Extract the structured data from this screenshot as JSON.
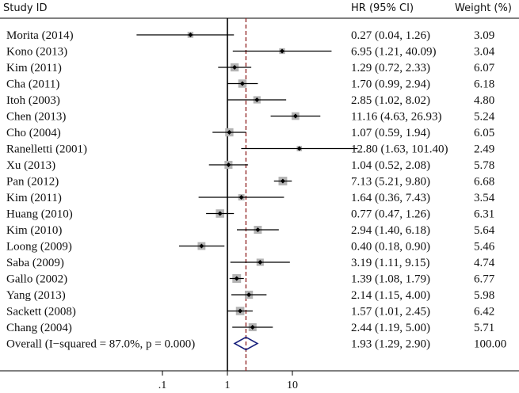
{
  "chart_data": {
    "type": "forest",
    "headers": {
      "study": "Study ID",
      "effect": "HR (95% CI)",
      "weight": "Weight (%)"
    },
    "x_scale": "log",
    "xlim": [
      0.01,
      1000
    ],
    "x_ticks": [
      {
        "value": 0.1,
        "label": ".1"
      },
      {
        "value": 1,
        "label": "1"
      },
      {
        "value": 10,
        "label": "10"
      }
    ],
    "null_line": 1,
    "overall_line": 1.93,
    "studies": [
      {
        "name": "Morita (2014)",
        "hr": 0.27,
        "lower": 0.04,
        "upper": 1.26,
        "ci_text": "0.27 (0.04, 1.26)",
        "weight": "3.09"
      },
      {
        "name": "Kono (2013)",
        "hr": 6.95,
        "lower": 1.21,
        "upper": 40.09,
        "ci_text": "6.95 (1.21, 40.09)",
        "weight": "3.04"
      },
      {
        "name": "Kim (2011)",
        "hr": 1.29,
        "lower": 0.72,
        "upper": 2.33,
        "ci_text": "1.29 (0.72, 2.33)",
        "weight": "6.07"
      },
      {
        "name": "Cha (2011)",
        "hr": 1.7,
        "lower": 0.99,
        "upper": 2.94,
        "ci_text": "1.70 (0.99, 2.94)",
        "weight": "6.18"
      },
      {
        "name": "Itoh (2003)",
        "hr": 2.85,
        "lower": 1.02,
        "upper": 8.02,
        "ci_text": "2.85 (1.02, 8.02)",
        "weight": "4.80"
      },
      {
        "name": "Chen (2013)",
        "hr": 11.16,
        "lower": 4.63,
        "upper": 26.93,
        "ci_text": "11.16 (4.63, 26.93)",
        "weight": "5.24"
      },
      {
        "name": "Cho (2004)",
        "hr": 1.07,
        "lower": 0.59,
        "upper": 1.94,
        "ci_text": "1.07 (0.59, 1.94)",
        "weight": "6.05"
      },
      {
        "name": "Ranelletti (2001)",
        "hr": 12.8,
        "lower": 1.63,
        "upper": 101.4,
        "ci_text": "12.80 (1.63, 101.40)",
        "weight": "2.49"
      },
      {
        "name": "Xu (2013)",
        "hr": 1.04,
        "lower": 0.52,
        "upper": 2.08,
        "ci_text": "1.04 (0.52, 2.08)",
        "weight": "5.78"
      },
      {
        "name": "Pan (2012)",
        "hr": 7.13,
        "lower": 5.21,
        "upper": 9.8,
        "ci_text": "7.13 (5.21, 9.80)",
        "weight": "6.68"
      },
      {
        "name": "Kim (2011)",
        "hr": 1.64,
        "lower": 0.36,
        "upper": 7.43,
        "ci_text": "1.64 (0.36, 7.43)",
        "weight": "3.54"
      },
      {
        "name": "Huang (2010)",
        "hr": 0.77,
        "lower": 0.47,
        "upper": 1.26,
        "ci_text": "0.77 (0.47, 1.26)",
        "weight": "6.31"
      },
      {
        "name": "Kim (2010)",
        "hr": 2.94,
        "lower": 1.4,
        "upper": 6.18,
        "ci_text": "2.94 (1.40, 6.18)",
        "weight": "5.64"
      },
      {
        "name": "Loong (2009)",
        "hr": 0.4,
        "lower": 0.18,
        "upper": 0.9,
        "ci_text": "0.40 (0.18, 0.90)",
        "weight": "5.46"
      },
      {
        "name": "Saba (2009)",
        "hr": 3.19,
        "lower": 1.11,
        "upper": 9.15,
        "ci_text": "3.19 (1.11, 9.15)",
        "weight": "4.74"
      },
      {
        "name": "Gallo (2002)",
        "hr": 1.39,
        "lower": 1.08,
        "upper": 1.79,
        "ci_text": "1.39 (1.08, 1.79)",
        "weight": "6.77"
      },
      {
        "name": "Yang (2013)",
        "hr": 2.14,
        "lower": 1.15,
        "upper": 4.0,
        "ci_text": "2.14 (1.15, 4.00)",
        "weight": "5.98"
      },
      {
        "name": "Sackett (2008)",
        "hr": 1.57,
        "lower": 1.01,
        "upper": 2.45,
        "ci_text": "1.57 (1.01, 2.45)",
        "weight": "6.42"
      },
      {
        "name": "Chang (2004)",
        "hr": 2.44,
        "lower": 1.19,
        "upper": 5.0,
        "ci_text": "2.44 (1.19, 5.00)",
        "weight": "5.71"
      }
    ],
    "overall": {
      "name": "Overall  (I−squared = 87.0%, p = 0.000)",
      "hr": 1.93,
      "lower": 1.29,
      "upper": 2.9,
      "ci_text": "1.93 (1.29, 2.90)",
      "weight": "100.00"
    },
    "colors": {
      "ci_line": "#000000",
      "weight_box": "#b4b4b4",
      "point": "#000000",
      "null_line": "#000000",
      "overall_line": "#8b1a1a",
      "diamond": "#1a237e"
    }
  }
}
